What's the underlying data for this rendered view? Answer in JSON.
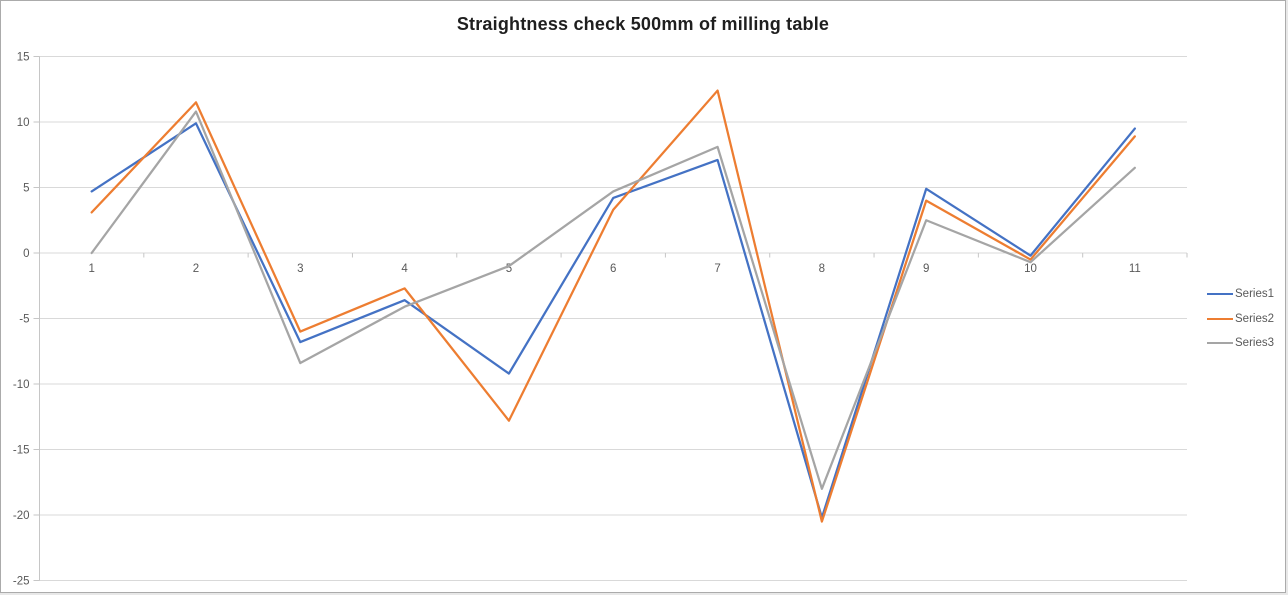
{
  "chart_data": {
    "type": "line",
    "title": "Straightness check 500mm of milling table",
    "xlabel": "",
    "ylabel": "",
    "x": [
      1,
      2,
      3,
      4,
      5,
      6,
      7,
      8,
      9,
      10,
      11
    ],
    "xticks": [
      "1",
      "2",
      "3",
      "4",
      "5",
      "6",
      "7",
      "8",
      "9",
      "10",
      "11"
    ],
    "yticks": [
      15,
      10,
      5,
      0,
      -5,
      -10,
      -15,
      -20,
      -25
    ],
    "ylim": [
      -25,
      15
    ],
    "grid": true,
    "legend_position": "right",
    "series": [
      {
        "name": "Series1",
        "color": "#4472C4",
        "values": [
          4.7,
          9.9,
          -6.8,
          -3.6,
          -9.2,
          4.2,
          7.1,
          -20.2,
          4.9,
          -0.2,
          9.5
        ]
      },
      {
        "name": "Series2",
        "color": "#ED7D31",
        "values": [
          3.1,
          11.5,
          -6.0,
          -2.7,
          -12.8,
          3.3,
          12.4,
          -20.5,
          4.0,
          -0.5,
          8.9
        ]
      },
      {
        "name": "Series3",
        "color": "#A5A5A5",
        "values": [
          0.0,
          10.8,
          -8.4,
          -4.1,
          -1.0,
          4.7,
          8.1,
          -18.0,
          2.5,
          -0.7,
          6.5
        ]
      }
    ],
    "style": {
      "background": "#FFFFFF",
      "frame_border_color": "#ABABAB",
      "grid_color": "#D9D9D9",
      "axis_color": "#C6C6C6",
      "tick_label_color": "#595959",
      "title_color": "#1F1F1F"
    }
  }
}
